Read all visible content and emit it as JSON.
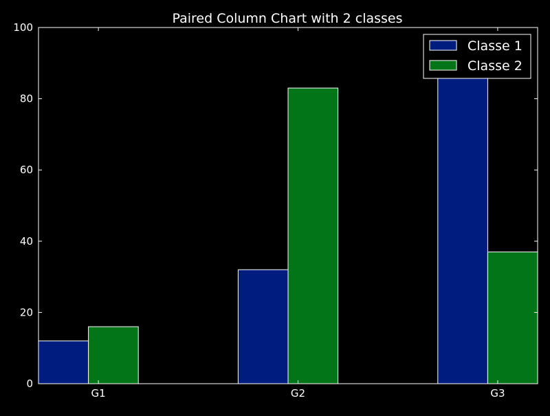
{
  "chart_data": {
    "type": "bar",
    "title": "Paired Column Chart with 2 classes",
    "xlabel": "",
    "ylabel": "",
    "categories": [
      "G1",
      "G2",
      "G3"
    ],
    "series": [
      {
        "name": "Classe 1",
        "values": [
          12,
          32,
          87
        ],
        "color": "#001c7f"
      },
      {
        "name": "Classe 2",
        "values": [
          16,
          83,
          37
        ],
        "color": "#017517"
      }
    ],
    "ylim": [
      0,
      100
    ],
    "yticks": [
      0,
      20,
      40,
      60,
      80,
      100
    ],
    "grid": false,
    "legend_position": "top-right",
    "background_color": "#000000",
    "edge_color": "#ffffff"
  }
}
